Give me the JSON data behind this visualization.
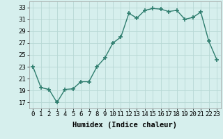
{
  "x": [
    0,
    1,
    2,
    3,
    4,
    5,
    6,
    7,
    8,
    9,
    10,
    11,
    12,
    13,
    14,
    15,
    16,
    17,
    18,
    19,
    20,
    21,
    22,
    23
  ],
  "y": [
    23,
    19.5,
    19.2,
    17,
    19.2,
    19.3,
    20.5,
    20.5,
    23,
    24.5,
    27,
    28,
    32,
    31.2,
    32.5,
    32.8,
    32.7,
    32.3,
    32.5,
    31.0,
    31.3,
    32.2,
    27.3,
    24.2
  ],
  "line_color": "#2e7d6e",
  "marker": "+",
  "marker_size": 4,
  "marker_lw": 1.2,
  "bg_color": "#d6efed",
  "grid_color": "#b8d8d5",
  "tick_label_color": "#000000",
  "xlabel": "Humidex (Indice chaleur)",
  "xlim": [
    -0.5,
    23.5
  ],
  "ylim": [
    16,
    34
  ],
  "yticks": [
    17,
    19,
    21,
    23,
    25,
    27,
    29,
    31,
    33
  ],
  "xticks": [
    0,
    1,
    2,
    3,
    4,
    5,
    6,
    7,
    8,
    9,
    10,
    11,
    12,
    13,
    14,
    15,
    16,
    17,
    18,
    19,
    20,
    21,
    22,
    23
  ],
  "xlabel_fontsize": 7.5,
  "tick_fontsize": 6.5
}
